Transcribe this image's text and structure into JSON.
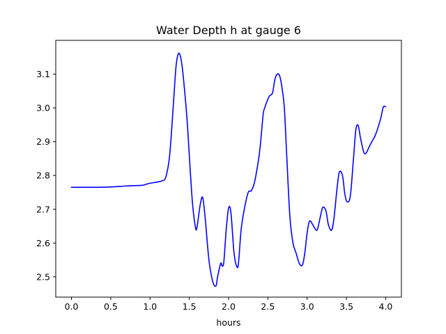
{
  "chart_data": {
    "type": "line",
    "title": "Water Depth h at gauge 6",
    "xlabel": "hours",
    "ylabel": "",
    "xlim": [
      -0.2,
      4.2
    ],
    "ylim": [
      2.44,
      3.2
    ],
    "xticks": [
      0.0,
      0.5,
      1.0,
      1.5,
      2.0,
      2.5,
      3.0,
      3.5,
      4.0
    ],
    "xtick_labels": [
      "0.0",
      "0.5",
      "1.0",
      "1.5",
      "2.0",
      "2.5",
      "3.0",
      "3.5",
      "4.0"
    ],
    "yticks": [
      2.5,
      2.6,
      2.7,
      2.8,
      2.9,
      3.0,
      3.1
    ],
    "ytick_labels": [
      "2.5",
      "2.6",
      "2.7",
      "2.8",
      "2.9",
      "3.0",
      "3.1"
    ],
    "grid": false,
    "color": "#0000ff",
    "series": [
      {
        "name": "",
        "x": [
          0.0,
          0.3,
          0.5,
          0.7,
          0.9,
          0.95,
          1.0,
          1.1,
          1.15,
          1.2,
          1.25,
          1.3,
          1.33,
          1.36,
          1.39,
          1.42,
          1.47,
          1.5,
          1.54,
          1.58,
          1.6,
          1.64,
          1.67,
          1.7,
          1.75,
          1.8,
          1.84,
          1.86,
          1.9,
          1.92,
          1.94,
          1.97,
          2.0,
          2.03,
          2.07,
          2.11,
          2.13,
          2.16,
          2.2,
          2.25,
          2.29,
          2.33,
          2.37,
          2.4,
          2.44,
          2.46,
          2.49,
          2.52,
          2.56,
          2.59,
          2.62,
          2.65,
          2.68,
          2.71,
          2.74,
          2.78,
          2.82,
          2.86,
          2.9,
          2.94,
          2.97,
          3.0,
          3.03,
          3.07,
          3.1,
          3.13,
          3.17,
          3.2,
          3.24,
          3.27,
          3.31,
          3.34,
          3.38,
          3.41,
          3.45,
          3.48,
          3.51,
          3.55,
          3.59,
          3.62,
          3.65,
          3.68,
          3.72,
          3.75,
          3.79,
          3.83,
          3.86,
          3.9,
          3.94,
          3.97,
          4.0
        ],
        "y": [
          2.765,
          2.765,
          2.766,
          2.769,
          2.771,
          2.774,
          2.777,
          2.781,
          2.784,
          2.795,
          2.86,
          3.02,
          3.12,
          3.16,
          3.15,
          3.1,
          2.97,
          2.86,
          2.72,
          2.645,
          2.65,
          2.715,
          2.735,
          2.68,
          2.55,
          2.485,
          2.473,
          2.5,
          2.54,
          2.532,
          2.545,
          2.64,
          2.703,
          2.69,
          2.57,
          2.528,
          2.55,
          2.64,
          2.7,
          2.75,
          2.755,
          2.78,
          2.83,
          2.88,
          2.98,
          3.0,
          3.02,
          3.035,
          3.045,
          3.085,
          3.1,
          3.095,
          3.06,
          3.0,
          2.86,
          2.68,
          2.6,
          2.57,
          2.54,
          2.535,
          2.57,
          2.63,
          2.665,
          2.655,
          2.643,
          2.64,
          2.68,
          2.706,
          2.695,
          2.655,
          2.638,
          2.67,
          2.76,
          2.81,
          2.8,
          2.745,
          2.722,
          2.74,
          2.85,
          2.935,
          2.948,
          2.91,
          2.87,
          2.866,
          2.885,
          2.903,
          2.915,
          2.94,
          2.972,
          3.003,
          3.003
        ]
      }
    ]
  }
}
